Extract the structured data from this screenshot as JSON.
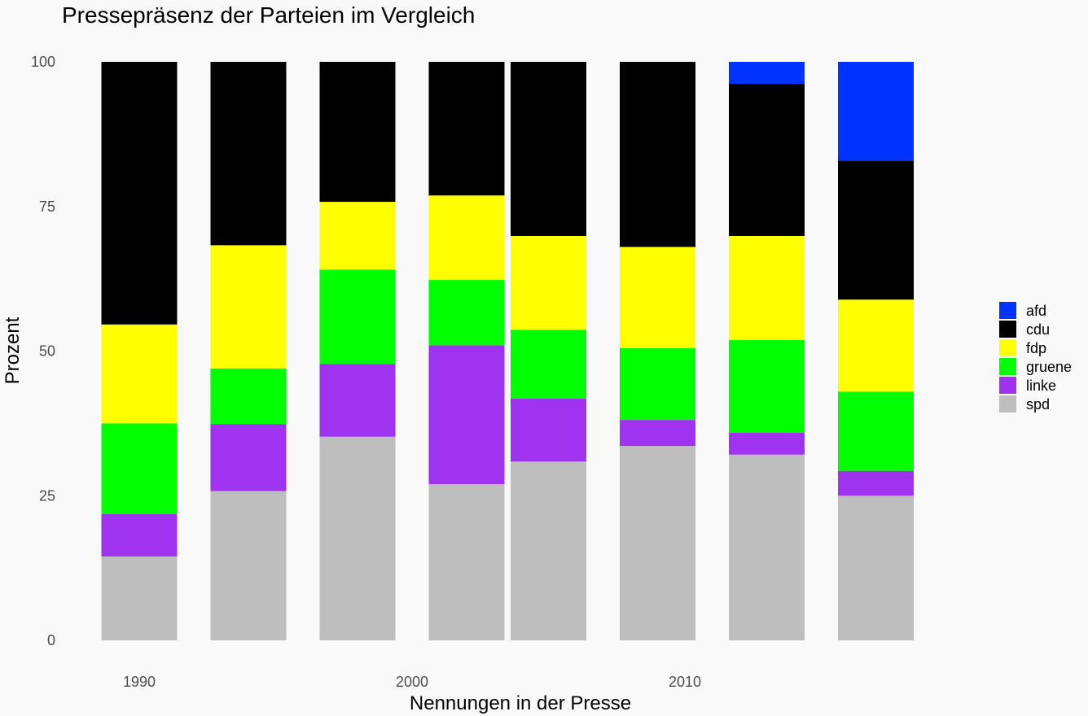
{
  "chart_data": {
    "type": "bar",
    "stacked": true,
    "title": "Pressepräsenz der Parteien im Vergleich",
    "xlabel": "Nennungen in der Presse",
    "ylabel": "Prozent",
    "x_ticks": [
      1990,
      2000,
      2010
    ],
    "y_ticks": [
      0,
      25,
      50,
      75,
      100
    ],
    "ylim": [
      0,
      100
    ],
    "xlim": [
      1988,
      2020
    ],
    "grid": false,
    "legend_position": "right",
    "x": [
      1990,
      1994,
      1998,
      2002,
      2005,
      2009,
      2013,
      2017
    ],
    "series": [
      {
        "name": "spd",
        "color": "#bebebe",
        "values": [
          14.5,
          25.8,
          35.2,
          27.0,
          30.9,
          33.6,
          32.1,
          25.0
        ]
      },
      {
        "name": "linke",
        "color": "#a033f0",
        "values": [
          7.3,
          11.6,
          12.6,
          24.0,
          10.9,
          4.5,
          3.8,
          4.3
        ]
      },
      {
        "name": "gruene",
        "color": "#00ff00",
        "values": [
          15.7,
          9.6,
          16.3,
          11.3,
          11.9,
          12.4,
          16.0,
          13.7
        ]
      },
      {
        "name": "fdp",
        "color": "#ffff00",
        "values": [
          17.1,
          21.3,
          11.7,
          14.6,
          16.2,
          17.5,
          18.0,
          15.9
        ]
      },
      {
        "name": "cdu",
        "color": "#000000",
        "values": [
          45.4,
          31.7,
          24.2,
          23.1,
          30.1,
          32.0,
          26.3,
          24.0
        ]
      },
      {
        "name": "afd",
        "color": "#0033ff",
        "values": [
          0,
          0,
          0,
          0,
          0,
          0,
          3.8,
          17.1
        ]
      }
    ],
    "legend_order": [
      "afd",
      "cdu",
      "fdp",
      "gruene",
      "linke",
      "spd"
    ]
  }
}
